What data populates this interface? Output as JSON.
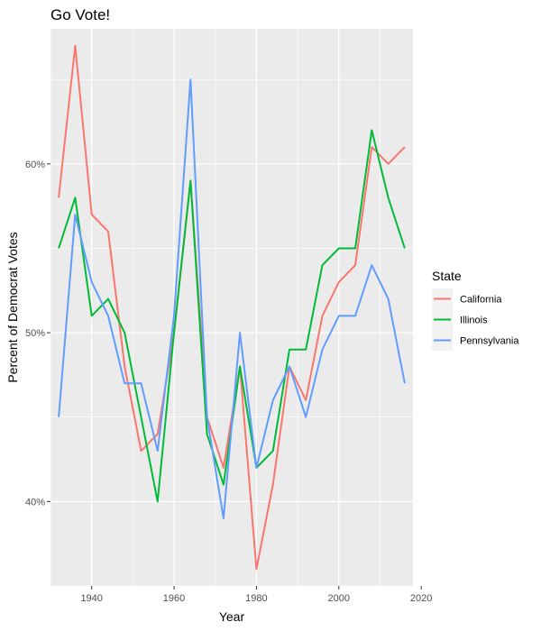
{
  "chart_data": {
    "type": "line",
    "title": "Go Vote!",
    "xlabel": "Year",
    "ylabel": "Percent of Democrat Votes",
    "xlim": [
      1930,
      2018
    ],
    "ylim": [
      0.35,
      0.68
    ],
    "x_ticks": [
      1940,
      1960,
      1980,
      2000,
      2020
    ],
    "x_tick_labels": [
      "1940",
      "1960",
      "1980",
      "2000",
      "2020"
    ],
    "y_ticks": [
      0.4,
      0.5,
      0.6
    ],
    "y_tick_labels": [
      "40%",
      "50%",
      "60%"
    ],
    "grid": true,
    "legend": {
      "title": "State",
      "position": "right"
    },
    "x": [
      1932,
      1936,
      1940,
      1944,
      1948,
      1952,
      1956,
      1960,
      1964,
      1968,
      1972,
      1976,
      1980,
      1984,
      1988,
      1992,
      1996,
      2000,
      2004,
      2008,
      2012,
      2016
    ],
    "series": [
      {
        "name": "California",
        "color": "#F8766D",
        "values": [
          0.58,
          0.67,
          0.57,
          0.56,
          0.48,
          0.43,
          0.44,
          0.5,
          0.59,
          0.45,
          0.42,
          0.48,
          0.36,
          0.41,
          0.48,
          0.46,
          0.51,
          0.53,
          0.54,
          0.61,
          0.6,
          0.61
        ]
      },
      {
        "name": "Illinois",
        "color": "#00BA38",
        "values": [
          0.55,
          0.58,
          0.51,
          0.52,
          0.5,
          0.45,
          0.4,
          0.5,
          0.59,
          0.44,
          0.41,
          0.48,
          0.42,
          0.43,
          0.49,
          0.49,
          0.54,
          0.55,
          0.55,
          0.62,
          0.58,
          0.55
        ]
      },
      {
        "name": "Pennsylvania",
        "color": "#619CFF",
        "values": [
          0.45,
          0.57,
          0.53,
          0.51,
          0.47,
          0.47,
          0.43,
          0.51,
          0.65,
          0.45,
          0.39,
          0.5,
          0.42,
          0.46,
          0.48,
          0.45,
          0.49,
          0.51,
          0.51,
          0.54,
          0.52,
          0.47
        ]
      }
    ]
  }
}
